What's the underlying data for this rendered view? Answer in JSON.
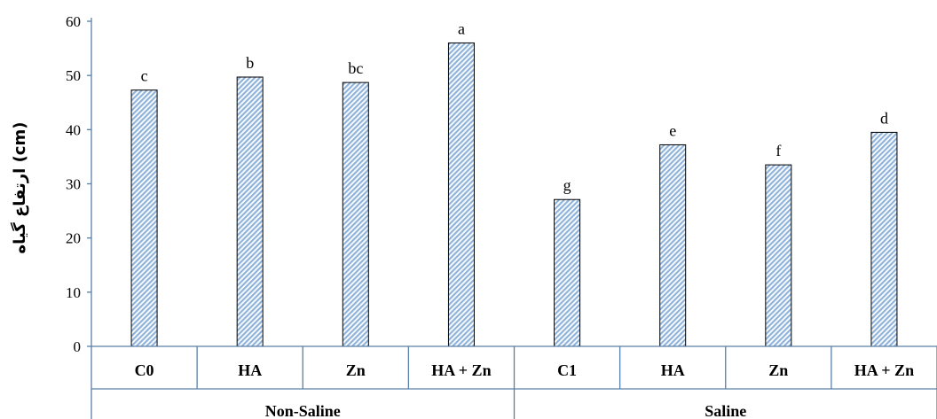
{
  "chart_data": {
    "type": "bar",
    "ylabel": "ارتفاع گیاه (cm)",
    "ylim": [
      0,
      60
    ],
    "yticks": [
      0,
      10,
      20,
      30,
      40,
      50,
      60
    ],
    "grid": false,
    "legend": "none",
    "bar_color": "#a9c7e6",
    "bar_pattern": "diagonal-hatch",
    "bar_edge_color": "#000000",
    "axis_color": "#5a7fa8",
    "categories": [
      "C0",
      "HA",
      "Zn",
      "HA + Zn",
      "C1",
      "HA",
      "Zn",
      "HA + Zn"
    ],
    "groups": [
      {
        "label": "Non-Saline",
        "start": 0,
        "count": 4
      },
      {
        "label": "Saline",
        "start": 4,
        "count": 4
      }
    ],
    "values": [
      47.3,
      49.7,
      48.7,
      56.0,
      27.1,
      37.2,
      33.5,
      39.5
    ],
    "letters": [
      "c",
      "b",
      "bc",
      "a",
      "g",
      "e",
      "f",
      "d"
    ]
  }
}
